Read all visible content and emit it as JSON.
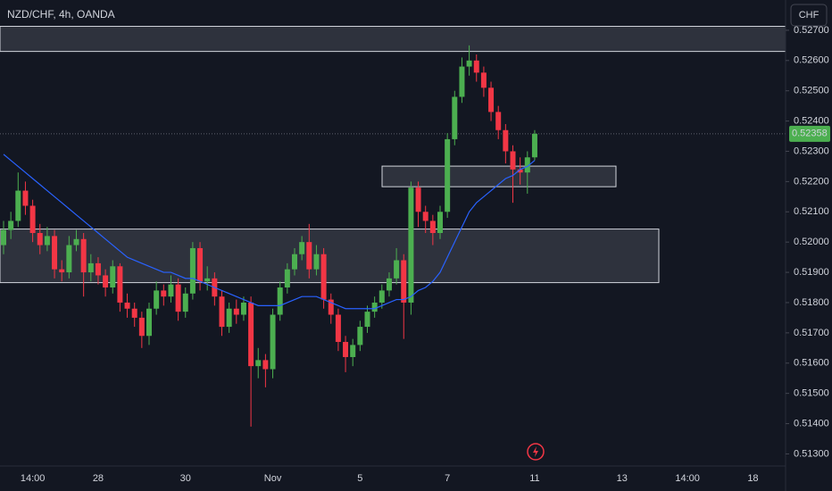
{
  "chart_data": {
    "type": "candlestick",
    "title": "NZD/CHF, 4h, OANDA",
    "currency": "CHF",
    "categories": [
      null,
      null,
      null,
      null,
      "14:00",
      null,
      null,
      null,
      null,
      null,
      null,
      null,
      null,
      "28",
      null,
      null,
      null,
      null,
      null,
      null,
      null,
      null,
      null,
      null,
      null,
      "30",
      null,
      null,
      null,
      null,
      null,
      null,
      null,
      null,
      null,
      null,
      null,
      "Nov",
      null,
      null,
      null,
      null,
      null,
      null,
      null,
      null,
      null,
      null,
      null,
      "5",
      null,
      null,
      null,
      null,
      null,
      null,
      null,
      null,
      null,
      null,
      null,
      "7",
      null,
      null,
      null,
      null,
      null,
      null,
      null,
      null,
      null,
      null,
      null,
      "11",
      null,
      null,
      null,
      null,
      null,
      null,
      null,
      null,
      null,
      null,
      null,
      "13",
      null,
      null,
      null,
      null,
      null,
      null,
      null,
      null,
      "14:00",
      null,
      null,
      null,
      null,
      null,
      null,
      null,
      null,
      "18",
      null,
      null,
      null,
      null
    ],
    "open": [
      0.5199,
      0.5204,
      0.5207,
      0.5217,
      0.5212,
      0.5203,
      0.5199,
      0.5202,
      0.5191,
      0.519,
      0.5199,
      0.5201,
      0.519,
      0.5193,
      0.5189,
      0.5185,
      0.5192,
      0.518,
      0.5178,
      0.5175,
      0.5169,
      0.5178,
      0.5184,
      0.5182,
      0.5186,
      0.5177,
      0.5183,
      0.5198,
      0.5187,
      0.5188,
      0.5182,
      0.5172,
      0.5178,
      0.5176,
      0.518,
      0.5159,
      0.5161,
      0.5158,
      0.5176,
      0.5185,
      0.5191,
      0.5196,
      0.52,
      0.5191,
      0.5196,
      0.5181,
      0.5176,
      0.5167,
      0.5162,
      0.5166,
      0.5172,
      0.5177,
      0.518,
      0.5184,
      0.5188,
      0.5194,
      0.518,
      0.5218,
      0.521,
      0.5207,
      0.5203,
      0.521,
      0.5234,
      0.5248,
      0.5258,
      0.526,
      0.5256,
      0.5251,
      0.5243,
      0.5237,
      0.523,
      0.5224,
      0.5223,
      0.5228,
      null,
      null,
      null,
      null,
      null,
      null,
      null,
      null,
      null,
      null,
      null,
      null,
      null,
      null,
      null,
      null,
      null,
      null,
      null,
      null,
      null,
      null,
      null,
      null,
      null,
      null,
      null,
      null,
      null,
      null,
      null,
      null,
      null,
      null
    ],
    "high": [
      0.5207,
      0.521,
      0.5223,
      0.522,
      0.5214,
      0.5206,
      0.5205,
      0.5204,
      0.5194,
      0.5202,
      0.5204,
      0.5203,
      0.5196,
      0.5195,
      0.5191,
      0.5194,
      0.5193,
      0.5183,
      0.518,
      0.5177,
      0.518,
      0.5187,
      0.5186,
      0.5189,
      0.5188,
      0.5185,
      0.52,
      0.52,
      0.5192,
      0.519,
      0.5184,
      0.518,
      0.5181,
      0.5182,
      0.5182,
      0.5165,
      0.5163,
      0.5178,
      0.5187,
      0.5193,
      0.5198,
      0.5202,
      0.5206,
      0.5199,
      0.5198,
      0.5183,
      0.5178,
      0.5169,
      0.5168,
      0.5174,
      0.5179,
      0.5182,
      0.5186,
      0.519,
      0.5198,
      0.5196,
      0.522,
      0.522,
      0.5212,
      0.5209,
      0.5212,
      0.5236,
      0.525,
      0.5261,
      0.5265,
      0.5262,
      0.5258,
      0.5253,
      0.5245,
      0.5239,
      0.5232,
      0.5228,
      0.523,
      0.5237,
      null,
      null,
      null,
      null,
      null,
      null,
      null,
      null,
      null,
      null,
      null,
      null,
      null,
      null,
      null,
      null,
      null,
      null,
      null,
      null,
      null,
      null,
      null,
      null,
      null,
      null,
      null,
      null,
      null,
      null,
      null,
      null,
      null,
      null
    ],
    "low": [
      0.5196,
      0.5201,
      0.5205,
      0.5209,
      0.52,
      0.5196,
      0.5197,
      0.5188,
      0.5187,
      0.5188,
      0.5197,
      0.5182,
      0.5187,
      0.5186,
      0.5182,
      0.5183,
      0.5177,
      0.5175,
      0.5172,
      0.5165,
      0.5166,
      0.5176,
      0.5179,
      0.518,
      0.5174,
      0.5175,
      0.5181,
      0.5184,
      0.5184,
      0.5179,
      0.5169,
      0.517,
      0.5173,
      0.5174,
      0.5139,
      0.5155,
      0.5152,
      0.5155,
      0.5174,
      0.5183,
      0.5189,
      0.5194,
      0.5188,
      0.5189,
      0.5178,
      0.5173,
      0.5164,
      0.5157,
      0.5159,
      0.5164,
      0.517,
      0.5175,
      0.5178,
      0.5182,
      0.5186,
      0.5168,
      0.5176,
      0.5205,
      0.5203,
      0.5199,
      0.5201,
      0.5208,
      0.5232,
      0.5246,
      0.5255,
      0.5253,
      0.5248,
      0.524,
      0.5234,
      0.5226,
      0.5213,
      0.5219,
      0.5216,
      0.5227,
      null,
      null,
      null,
      null,
      null,
      null,
      null,
      null,
      null,
      null,
      null,
      null,
      null,
      null,
      null,
      null,
      null,
      null,
      null,
      null,
      null,
      null,
      null,
      null,
      null,
      null,
      null,
      null,
      null,
      null,
      null,
      null,
      null,
      null
    ],
    "close": [
      0.5204,
      0.5207,
      0.5217,
      0.5212,
      0.5203,
      0.5199,
      0.5202,
      0.5191,
      0.519,
      0.5199,
      0.5201,
      0.519,
      0.5193,
      0.5189,
      0.5185,
      0.5192,
      0.518,
      0.5178,
      0.5175,
      0.5169,
      0.5178,
      0.5184,
      0.5182,
      0.5186,
      0.5177,
      0.5183,
      0.5198,
      0.5187,
      0.5188,
      0.5182,
      0.5172,
      0.5178,
      0.5176,
      0.518,
      0.5159,
      0.5161,
      0.5158,
      0.5176,
      0.5185,
      0.5191,
      0.5196,
      0.52,
      0.5191,
      0.5196,
      0.5181,
      0.5176,
      0.5167,
      0.5162,
      0.5166,
      0.5172,
      0.5177,
      0.518,
      0.5184,
      0.5188,
      0.5194,
      0.518,
      0.5218,
      0.521,
      0.5207,
      0.5203,
      0.521,
      0.5234,
      0.5248,
      0.5258,
      0.526,
      0.5256,
      0.5251,
      0.5243,
      0.5237,
      0.523,
      0.5224,
      0.5223,
      0.5228,
      0.52358,
      null,
      null,
      null,
      null,
      null,
      null,
      null,
      null,
      null,
      null,
      null,
      null,
      null,
      null,
      null,
      null,
      null,
      null,
      null,
      null,
      null,
      null,
      null,
      null,
      null,
      null,
      null,
      null,
      null,
      null,
      null,
      null,
      null,
      null
    ],
    "up_color": "#4caf50",
    "down_color": "#f23645",
    "ma": {
      "color": "#2962ff",
      "values": [
        0.5229,
        0.5227,
        0.5225,
        0.5223,
        0.5221,
        0.5219,
        0.5217,
        0.5215,
        0.5213,
        0.5211,
        0.5209,
        0.5207,
        0.5205,
        0.5203,
        0.5201,
        0.5199,
        0.5197,
        0.5195,
        0.5194,
        0.5193,
        0.5192,
        0.5191,
        0.519,
        0.519,
        0.5189,
        0.5188,
        0.5188,
        0.5187,
        0.5186,
        0.5185,
        0.5184,
        0.5183,
        0.5182,
        0.5181,
        0.518,
        0.5179,
        0.5179,
        0.5179,
        0.5179,
        0.518,
        0.5181,
        0.5182,
        0.5182,
        0.5182,
        0.5181,
        0.518,
        0.5179,
        0.5178,
        0.5178,
        0.5178,
        0.5178,
        0.5178,
        0.5179,
        0.518,
        0.5181,
        0.5181,
        0.5182,
        0.5184,
        0.5185,
        0.5187,
        0.519,
        0.5195,
        0.52,
        0.5205,
        0.521,
        0.5213,
        0.5215,
        0.5217,
        0.5219,
        0.5221,
        0.5222,
        0.5224,
        0.5225,
        0.5227,
        null,
        null,
        null,
        null,
        null,
        null,
        null,
        null,
        null,
        null,
        null,
        null,
        null,
        null,
        null,
        null,
        null,
        null,
        null,
        null,
        null,
        null,
        null,
        null,
        null,
        null,
        null,
        null,
        null,
        null,
        null,
        null,
        null,
        null
      ]
    },
    "zones": [
      {
        "low": 0.5263,
        "high": 0.52713
      },
      {
        "low": 0.52183,
        "high": 0.52251
      },
      {
        "low": 0.51866,
        "high": 0.52043
      }
    ],
    "last_price": 0.52358,
    "last_price_color": "#4caf50",
    "ylim": [
      0.5126,
      0.528
    ],
    "yticks": [
      {
        "value": 0.527,
        "label": "0.52700"
      },
      {
        "value": 0.526,
        "label": "0.52600"
      },
      {
        "value": 0.525,
        "label": "0.52500"
      },
      {
        "value": 0.524,
        "label": "0.52400"
      },
      {
        "value": 0.523,
        "label": "0.52300"
      },
      {
        "value": 0.522,
        "label": "0.52200"
      },
      {
        "value": 0.521,
        "label": "0.52100"
      },
      {
        "value": 0.52,
        "label": "0.52000"
      },
      {
        "value": 0.519,
        "label": "0.51900"
      },
      {
        "value": 0.518,
        "label": "0.51800"
      },
      {
        "value": 0.517,
        "label": "0.51700"
      },
      {
        "value": 0.516,
        "label": "0.51600"
      },
      {
        "value": 0.515,
        "label": "0.51500"
      },
      {
        "value": 0.514,
        "label": "0.51400"
      },
      {
        "value": 0.513,
        "label": "0.51300"
      }
    ],
    "grid": false
  }
}
